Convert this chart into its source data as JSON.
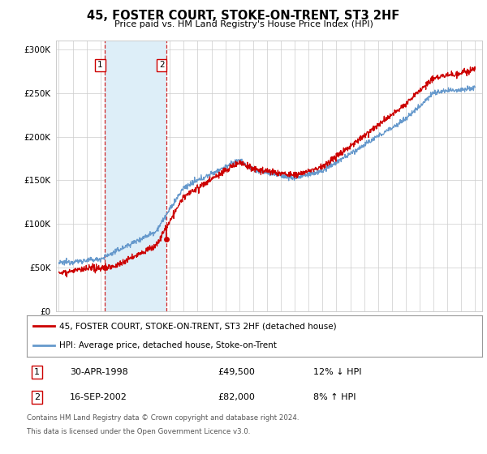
{
  "title": "45, FOSTER COURT, STOKE-ON-TRENT, ST3 2HF",
  "subtitle": "Price paid vs. HM Land Registry's House Price Index (HPI)",
  "ylim": [
    0,
    310000
  ],
  "yticks": [
    0,
    50000,
    100000,
    150000,
    200000,
    250000,
    300000
  ],
  "ytick_labels": [
    "£0",
    "£50K",
    "£100K",
    "£150K",
    "£200K",
    "£250K",
    "£300K"
  ],
  "transaction1_date": 1998.33,
  "transaction1_price": 49500,
  "transaction2_date": 2002.75,
  "transaction2_price": 82000,
  "legend_line1": "45, FOSTER COURT, STOKE-ON-TRENT, ST3 2HF (detached house)",
  "legend_line2": "HPI: Average price, detached house, Stoke-on-Trent",
  "table_row1_num": "1",
  "table_row1_date": "30-APR-1998",
  "table_row1_price": "£49,500",
  "table_row1_hpi": "12% ↓ HPI",
  "table_row2_num": "2",
  "table_row2_date": "16-SEP-2002",
  "table_row2_price": "£82,000",
  "table_row2_hpi": "8% ↑ HPI",
  "footnote1": "Contains HM Land Registry data © Crown copyright and database right 2024.",
  "footnote2": "This data is licensed under the Open Government Licence v3.0.",
  "line_color_red": "#cc0000",
  "line_color_blue": "#6699cc",
  "shade_color": "#ddeef8",
  "grid_color": "#cccccc",
  "background_color": "#ffffff",
  "xmin": 1994.8,
  "xmax": 2025.5
}
